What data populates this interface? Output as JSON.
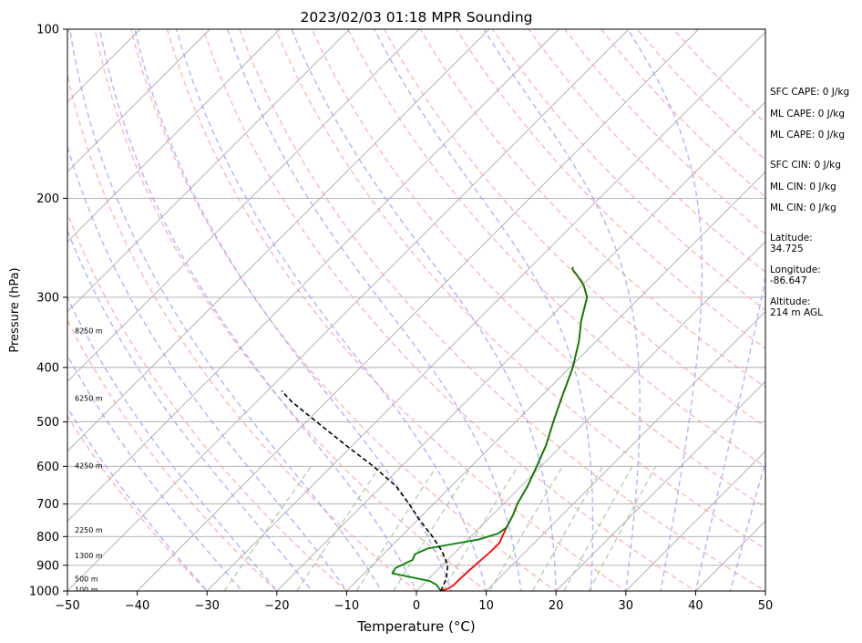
{
  "chart_data": {
    "type": "line",
    "title": "2023/02/03 01:18 MPR Sounding",
    "xlabel": "Temperature (°C)",
    "ylabel": "Pressure (hPa)",
    "xlim": [
      -50,
      50
    ],
    "ylim": [
      1000,
      100
    ],
    "y_scale": "log",
    "skew": true,
    "grid": true,
    "x_ticks": [
      -50,
      -40,
      -30,
      -20,
      -10,
      0,
      10,
      20,
      30,
      40,
      50
    ],
    "x_tick_labels": [
      "−50",
      "−40",
      "−30",
      "−20",
      "−10",
      "0",
      "10",
      "20",
      "30",
      "40",
      "50"
    ],
    "y_ticks": [
      1000,
      900,
      800,
      700,
      600,
      500,
      400,
      300,
      200,
      100
    ],
    "y_tick_labels": [
      "1000",
      "900",
      "800",
      "700",
      "600",
      "500",
      "400",
      "300",
      "200",
      "100"
    ],
    "colors": {
      "temperature": "#ff0000",
      "dewpoint": "#008000",
      "parcel": "#000000",
      "isotherm": "#aaaaaa",
      "dry_adiabat": "#ff9999",
      "moist_adiabat": "#9999ff",
      "mixing_ratio": "#99cc99"
    },
    "series": [
      {
        "key": "temperature",
        "x": [
          3.5,
          4.2,
          4.5,
          4.5,
          4.7,
          5.0,
          5.0,
          4.5,
          3.8,
          2.9,
          2.0,
          0.9,
          -0.6,
          -2.3,
          -4.6,
          -7.0,
          -9.6,
          -12.4,
          -15.1,
          -17.6,
          -19.9,
          -22.0,
          -23.6,
          -24.0
        ],
        "y": [
          1000,
          990,
          975,
          950,
          900,
          850,
          820,
          800,
          770,
          730,
          700,
          650,
          600,
          550,
          500,
          450,
          400,
          360,
          330,
          300,
          285,
          275,
          268,
          265
        ]
      },
      {
        "key": "dewpoint",
        "x": [
          3.5,
          2.0,
          0.5,
          -6.0,
          -6.3,
          -5.0,
          -5.5,
          -4.5,
          1.5,
          3.5,
          3.8,
          2.9,
          2.0,
          0.9,
          -0.6,
          -2.3,
          -4.6,
          -7.0,
          -9.6,
          -12.4,
          -15.1,
          -17.6,
          -19.9,
          -22.0,
          -23.6,
          -24.0
        ],
        "y": [
          1000,
          975,
          960,
          930,
          910,
          880,
          860,
          840,
          810,
          790,
          770,
          730,
          700,
          650,
          600,
          550,
          500,
          450,
          400,
          360,
          330,
          300,
          285,
          275,
          268,
          265
        ]
      },
      {
        "key": "parcel",
        "x": [
          3.5,
          2.5,
          0.8,
          -2.0,
          -5.5,
          -9.5,
          -13.5,
          -18.0,
          -24.0,
          -31.0,
          -38.5,
          -45.0,
          -48.0
        ],
        "y": [
          1000,
          950,
          900,
          850,
          800,
          750,
          700,
          650,
          600,
          550,
          500,
          460,
          440
        ]
      }
    ],
    "height_labels": [
      "100 m",
      "500 m",
      "1300 m",
      "2250 m",
      "4250 m",
      "6250 m",
      "8250 m"
    ],
    "height_label_pressures": [
      998,
      955,
      868,
      782,
      600,
      455,
      345
    ],
    "info": {
      "sfc_cape": "SFC CAPE: 0 J/kg",
      "ml_cape_1": "ML CAPE: 0 J/kg",
      "ml_cape_2": "ML CAPE: 0 J/kg",
      "sfc_cin": "SFC CIN: 0 J/kg",
      "ml_cin_1": "ML CIN: 0 J/kg",
      "ml_cin_2": "ML CIN: 0 J/kg",
      "latitude_label": "Latitude:",
      "latitude_value": "34.725",
      "longitude_label": "Longitude:",
      "longitude_value": "-86.647",
      "altitude_label": "Altitude:",
      "altitude_value": "214 m AGL"
    }
  }
}
